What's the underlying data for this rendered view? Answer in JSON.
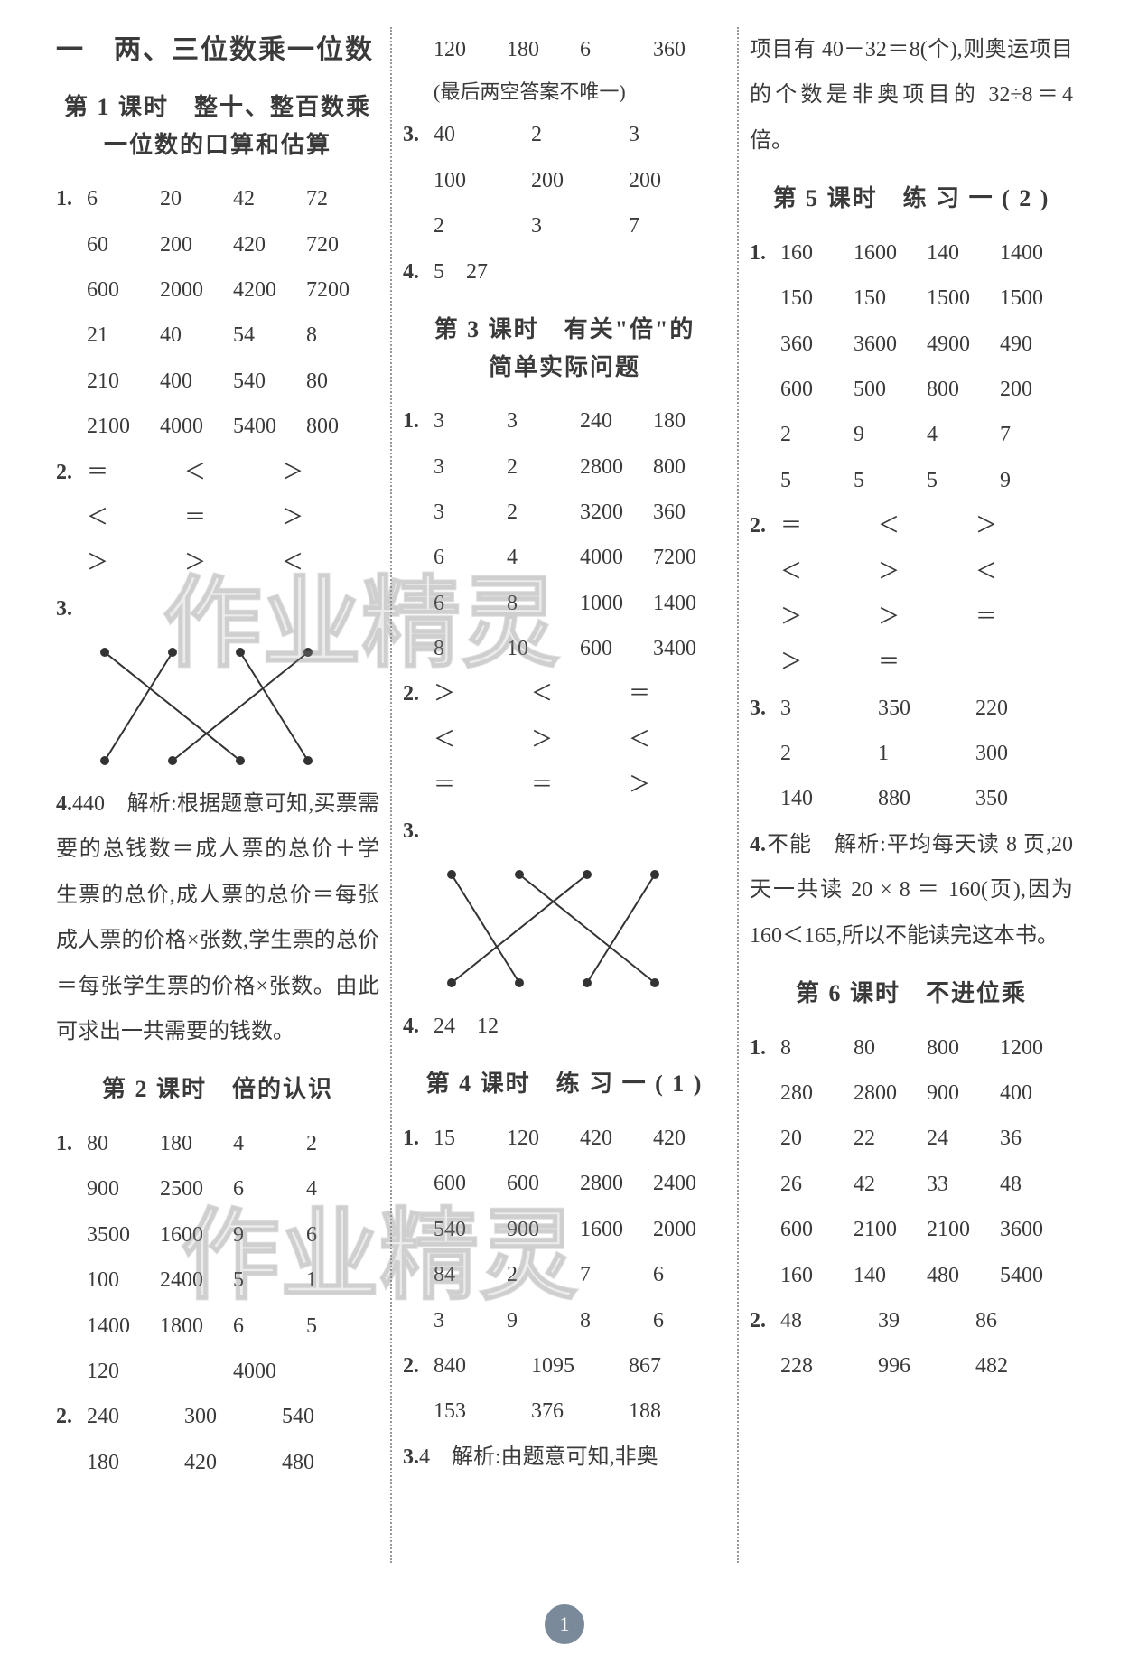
{
  "page_number": "1",
  "watermark_text": "作业精灵",
  "chapter": {
    "title": "一　两、三位数乘一位数"
  },
  "col1": {
    "lesson1": {
      "title_l1": "第 1 课时　整十、整百数乘",
      "title_l2": "一位数的口算和估算",
      "q1": {
        "num": "1.",
        "rows": [
          [
            "6",
            "20",
            "42",
            "72"
          ],
          [
            "60",
            "200",
            "420",
            "720"
          ],
          [
            "600",
            "2000",
            "4200",
            "7200"
          ],
          [
            "21",
            "40",
            "54",
            "8"
          ],
          [
            "210",
            "400",
            "540",
            "80"
          ],
          [
            "2100",
            "4000",
            "5400",
            "800"
          ]
        ]
      },
      "q2": {
        "num": "2.",
        "rows": [
          [
            "＝",
            "＜",
            "＞"
          ],
          [
            "＜",
            "＝",
            "＞"
          ],
          [
            "＞",
            "＞",
            "＜"
          ]
        ]
      },
      "q3": {
        "num": "3."
      },
      "q4": {
        "num": "4.",
        "text": "440　解析:根据题意可知,买票需要的总钱数＝成人票的总价＋学生票的总价,成人票的总价＝每张成人票的价格×张数,学生票的总价＝每张学生票的价格×张数。由此可求出一共需要的钱数。"
      }
    },
    "lesson2": {
      "title": "第 2 课时　倍的认识",
      "q1": {
        "num": "1.",
        "rows": [
          [
            "80",
            "180",
            "4",
            "2"
          ],
          [
            "900",
            "2500",
            "6",
            "4"
          ],
          [
            "3500",
            "1600",
            "9",
            "6"
          ],
          [
            "100",
            "2400",
            "5",
            "1"
          ],
          [
            "1400",
            "1800",
            "6",
            "5"
          ],
          [
            "120",
            "",
            "4000",
            ""
          ]
        ]
      },
      "q2": {
        "num": "2.",
        "rows": [
          [
            "240",
            "300",
            "540"
          ],
          [
            "180",
            "420",
            "480"
          ]
        ]
      }
    }
  },
  "col2": {
    "top_rows": [
      [
        "120",
        "180",
        "6",
        "360"
      ]
    ],
    "top_note": "(最后两空答案不唯一)",
    "q3": {
      "num": "3.",
      "rows": [
        [
          "40",
          "2",
          "3"
        ],
        [
          "100",
          "200",
          "200"
        ],
        [
          "2",
          "3",
          "7"
        ]
      ]
    },
    "q4": {
      "num": "4.",
      "text": "5　27"
    },
    "lesson3": {
      "title_l1": "第 3 课时　有关\"倍\"的",
      "title_l2": "简单实际问题",
      "q1": {
        "num": "1.",
        "rows": [
          [
            "3",
            "3",
            "240",
            "180"
          ],
          [
            "3",
            "2",
            "2800",
            "800"
          ],
          [
            "3",
            "2",
            "3200",
            "360"
          ],
          [
            "6",
            "4",
            "4000",
            "7200"
          ],
          [
            "6",
            "8",
            "1000",
            "1400"
          ],
          [
            "8",
            "10",
            "600",
            "3400"
          ]
        ]
      },
      "q2": {
        "num": "2.",
        "rows": [
          [
            "＞",
            "＜",
            "＝"
          ],
          [
            "＜",
            "＞",
            "＜"
          ],
          [
            "＝",
            "＝",
            "＞"
          ]
        ]
      },
      "q3": {
        "num": "3."
      },
      "q4": {
        "num": "4.",
        "text": "24　12"
      }
    },
    "lesson4": {
      "title": "第 4 课时　练 习 一 ( 1 )",
      "q1": {
        "num": "1.",
        "rows": [
          [
            "15",
            "120",
            "420",
            "420"
          ],
          [
            "600",
            "600",
            "2800",
            "2400"
          ],
          [
            "540",
            "900",
            "1600",
            "2000"
          ],
          [
            "84",
            "2",
            "7",
            "6"
          ],
          [
            "3",
            "9",
            "8",
            "6"
          ]
        ]
      },
      "q2": {
        "num": "2.",
        "rows": [
          [
            "840",
            "1095",
            "867"
          ],
          [
            "153",
            "376",
            "188"
          ]
        ]
      },
      "q3": {
        "num": "3.",
        "text": "4　解析:由题意可知,非奥"
      }
    }
  },
  "col3": {
    "top_para": "项目有 40－32＝8(个),则奥运项目的个数是非奥项目的 32÷8＝4 倍。",
    "lesson5": {
      "title": "第 5 课时　练 习 一 ( 2 )",
      "q1": {
        "num": "1.",
        "rows": [
          [
            "160",
            "1600",
            "140",
            "1400"
          ],
          [
            "150",
            "150",
            "1500",
            "1500"
          ],
          [
            "360",
            "3600",
            "4900",
            "490"
          ],
          [
            "600",
            "500",
            "800",
            "200"
          ],
          [
            "2",
            "9",
            "4",
            "7"
          ],
          [
            "5",
            "5",
            "5",
            "9"
          ]
        ]
      },
      "q2": {
        "num": "2.",
        "rows": [
          [
            "＝",
            "＜",
            "＞"
          ],
          [
            "＜",
            "＞",
            "＜"
          ],
          [
            "＞",
            "＞",
            "＝"
          ],
          [
            "＞",
            "＝",
            ""
          ]
        ]
      },
      "q3": {
        "num": "3.",
        "rows": [
          [
            "3",
            "350",
            "220"
          ],
          [
            "2",
            "1",
            "300"
          ],
          [
            "140",
            "880",
            "350"
          ]
        ]
      },
      "q4": {
        "num": "4.",
        "text": "不能　解析:平均每天读 8 页,20 天一共读 20 × 8 ＝ 160(页),因为 160＜165,所以不能读完这本书。"
      }
    },
    "lesson6": {
      "title": "第 6 课时　不进位乘",
      "q1": {
        "num": "1.",
        "rows": [
          [
            "8",
            "80",
            "800",
            "1200"
          ],
          [
            "280",
            "2800",
            "900",
            "400"
          ],
          [
            "20",
            "22",
            "24",
            "36"
          ],
          [
            "26",
            "42",
            "33",
            "48"
          ],
          [
            "600",
            "2100",
            "2100",
            "3600"
          ],
          [
            "160",
            "140",
            "480",
            "5400"
          ]
        ]
      },
      "q2": {
        "num": "2.",
        "rows": [
          [
            "48",
            "39",
            "86"
          ],
          [
            "228",
            "996",
            "482"
          ]
        ]
      }
    }
  },
  "diagram": {
    "dot_color": "#333333",
    "line_color": "#333333",
    "line_width": 2,
    "top_dots": 4,
    "bottom_dots": 4
  }
}
